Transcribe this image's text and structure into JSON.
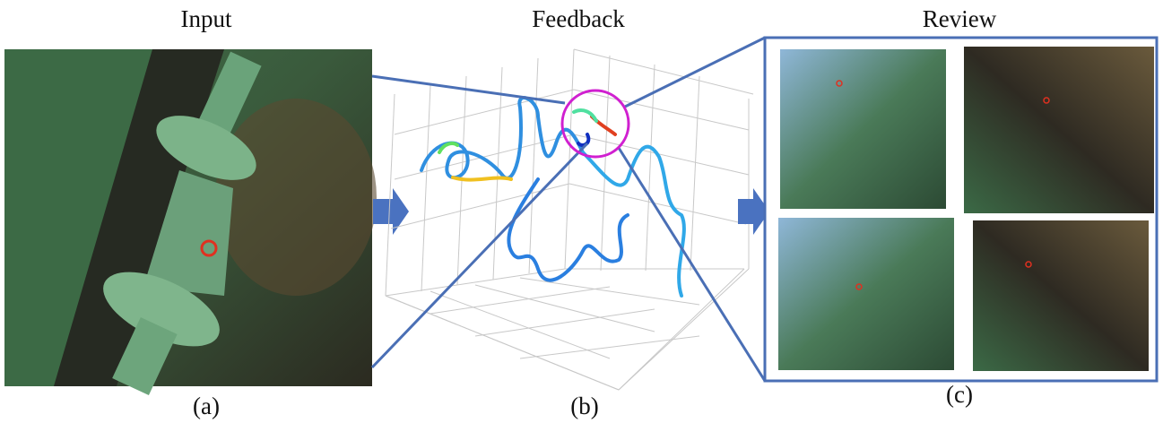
{
  "panels": [
    {
      "title": "Input",
      "caption": "(a)"
    },
    {
      "title": "Feedback",
      "caption": "(b)"
    },
    {
      "title": "Review",
      "caption": "(c)"
    }
  ]
}
